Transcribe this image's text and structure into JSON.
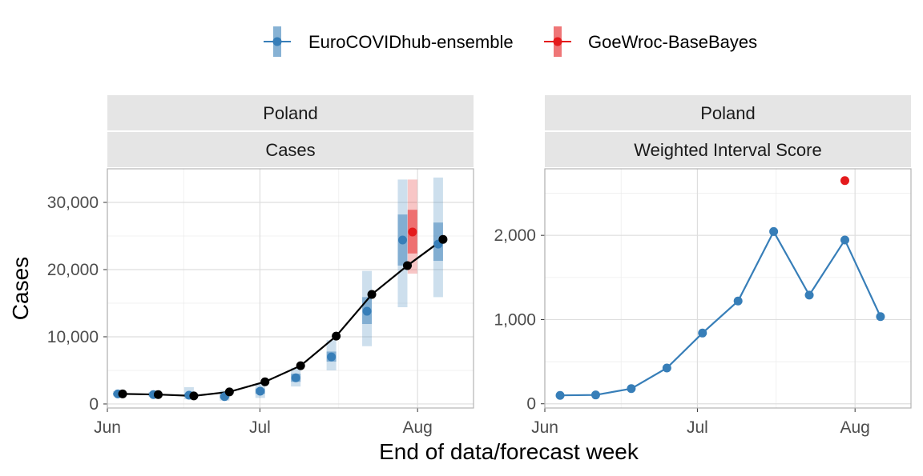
{
  "colors": {
    "ensemble": "#377EB8",
    "basebayes": "#E41A1C",
    "observed": "#000000",
    "strip_bg": "#E5E5E5",
    "grid": "#EBEBEB",
    "panel_border": "#B3B3B3"
  },
  "legend": {
    "entries": [
      {
        "name": "EuroCOVIDhub-ensemble",
        "color": "#377EB8"
      },
      {
        "name": "GoeWroc-BaseBayes",
        "color": "#E41A1C"
      }
    ]
  },
  "x_axis_title": "End of data/forecast week",
  "chart_data": [
    {
      "type": "line",
      "strip_top": "Poland",
      "strip_bottom": "Cases",
      "ylabel": "Cases",
      "xlim": [
        "2021-06-01",
        "2021-08-12"
      ],
      "ylim": [
        -600,
        35000
      ],
      "x_ticks": [
        {
          "date": "2021-06-01",
          "label": "Jun"
        },
        {
          "date": "2021-07-01",
          "label": "Jul"
        },
        {
          "date": "2021-08-01",
          "label": "Aug"
        }
      ],
      "y_ticks": [
        {
          "value": 0,
          "label": "0"
        },
        {
          "value": 10000,
          "label": "10,000"
        },
        {
          "value": 20000,
          "label": "20,000"
        },
        {
          "value": 30000,
          "label": "30,000"
        }
      ],
      "observed": {
        "x": [
          "2021-06-04",
          "2021-06-11",
          "2021-06-18",
          "2021-06-25",
          "2021-07-02",
          "2021-07-09",
          "2021-07-16",
          "2021-07-23",
          "2021-07-30",
          "2021-08-06"
        ],
        "y": [
          1500,
          1400,
          1200,
          1800,
          3300,
          5700,
          10100,
          16300,
          20600,
          24500
        ]
      },
      "forecasts": [
        {
          "name": "EuroCOVIDhub-ensemble",
          "x": [
            "2021-06-04",
            "2021-06-11",
            "2021-06-18",
            "2021-06-25",
            "2021-07-02",
            "2021-07-09",
            "2021-07-16",
            "2021-07-23",
            "2021-07-30",
            "2021-08-06"
          ],
          "median": [
            1500,
            1400,
            1300,
            1100,
            1900,
            3900,
            7000,
            13800,
            24400,
            23800
          ],
          "lower_50": [
            1350,
            1250,
            1050,
            850,
            1500,
            3300,
            6300,
            11900,
            20600,
            21300
          ],
          "upper_50": [
            1650,
            1550,
            1550,
            1400,
            2300,
            4500,
            7800,
            15900,
            28200,
            27000
          ],
          "lower_90": [
            1150,
            1050,
            700,
            500,
            900,
            2600,
            5000,
            8600,
            14400,
            15900
          ],
          "upper_90": [
            1900,
            1800,
            2500,
            2000,
            3000,
            5400,
            9500,
            19800,
            33400,
            33700
          ]
        },
        {
          "name": "GoeWroc-BaseBayes",
          "x": [
            "2021-07-31"
          ],
          "median": [
            25600
          ],
          "lower_50": [
            22400
          ],
          "upper_50": [
            28900
          ],
          "lower_90": [
            19400
          ],
          "upper_90": [
            33400
          ]
        }
      ]
    },
    {
      "type": "line",
      "strip_top": "Poland",
      "strip_bottom": "Weighted Interval Score",
      "ylabel": "",
      "xlim": [
        "2021-06-01",
        "2021-08-12"
      ],
      "ylim": [
        -50,
        2790
      ],
      "x_ticks": [
        {
          "date": "2021-06-01",
          "label": "Jun"
        },
        {
          "date": "2021-07-01",
          "label": "Jul"
        },
        {
          "date": "2021-08-01",
          "label": "Aug"
        }
      ],
      "y_ticks": [
        {
          "value": 0,
          "label": "0"
        },
        {
          "value": 1000,
          "label": "1,000"
        },
        {
          "value": 2000,
          "label": "2,000"
        }
      ],
      "series": [
        {
          "name": "EuroCOVIDhub-ensemble",
          "x": [
            "2021-06-04",
            "2021-06-11",
            "2021-06-18",
            "2021-06-25",
            "2021-07-02",
            "2021-07-09",
            "2021-07-16",
            "2021-07-23",
            "2021-07-30",
            "2021-08-06"
          ],
          "values": [
            100,
            105,
            180,
            425,
            840,
            1220,
            2045,
            1290,
            1945,
            1035
          ]
        },
        {
          "name": "GoeWroc-BaseBayes",
          "x": [
            "2021-07-30"
          ],
          "values": [
            2650
          ]
        }
      ]
    }
  ]
}
